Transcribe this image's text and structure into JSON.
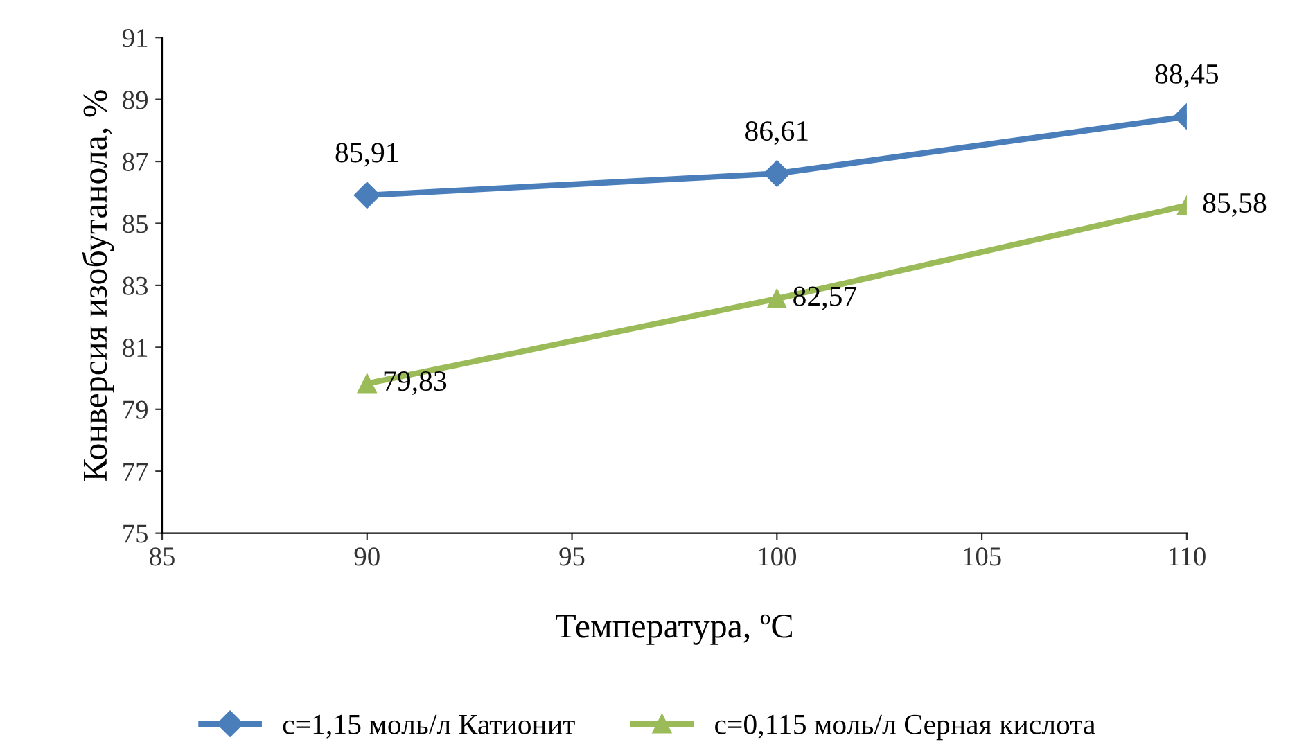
{
  "chart_data": {
    "type": "line",
    "xlabel": "Температура, ºС",
    "ylabel": "Конверсия изобутанола, %",
    "x": [
      90,
      100,
      110
    ],
    "series": [
      {
        "name": "c=1,15 моль/л Катионит",
        "color": "#4a7ebb",
        "marker": "diamond",
        "values": [
          85.91,
          86.61,
          88.45
        ],
        "value_labels": [
          "85,91",
          "86,61",
          "88,45"
        ]
      },
      {
        "name": "c=0,115 моль/л Серная кислота",
        "color": "#9bbb59",
        "marker": "triangle",
        "values": [
          79.83,
          82.57,
          85.58
        ],
        "value_labels": [
          "79,83",
          "82,57",
          "85,58"
        ]
      }
    ],
    "xlim": [
      85,
      110
    ],
    "xticks": [
      85,
      90,
      95,
      100,
      105,
      110
    ],
    "ylim": [
      75,
      91
    ],
    "yticks": [
      75,
      77,
      79,
      81,
      83,
      85,
      87,
      89,
      91
    ],
    "grid": false,
    "legend": "bottom",
    "line_style": "solid"
  }
}
